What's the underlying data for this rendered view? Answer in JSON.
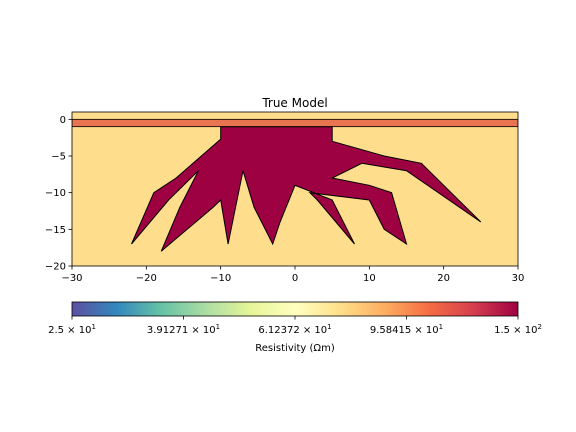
{
  "chart_data": {
    "type": "heatmap",
    "title": "True Model",
    "xlim": [
      -30,
      30
    ],
    "ylim": [
      -20,
      1
    ],
    "x_ticks": [
      -30,
      -20,
      -10,
      0,
      10,
      20,
      30
    ],
    "x_tick_labels": [
      "−30",
      "−20",
      "−10",
      "0",
      "10",
      "20",
      "30"
    ],
    "y_ticks": [
      0,
      -5,
      -10,
      -15,
      -20
    ],
    "y_tick_labels": [
      "0",
      "−5",
      "−10",
      "−15",
      "−20"
    ],
    "regions": [
      {
        "name": "background",
        "resistivity": 62,
        "color": "#fedd8d"
      },
      {
        "name": "surface layer",
        "y_top": 0,
        "y_bottom": -1,
        "resistivity": 100,
        "color": "#e8754f"
      },
      {
        "name": "root body",
        "resistivity": 150,
        "color": "#9e0142",
        "outline": [
          [
            -10,
            -1
          ],
          [
            -10,
            -2.7
          ],
          [
            -16,
            -8
          ],
          [
            -19,
            -10
          ],
          [
            -22,
            -17
          ],
          [
            -17,
            -11
          ],
          [
            -13,
            -7
          ],
          [
            -15.5,
            -12
          ],
          [
            -18,
            -18
          ],
          [
            -14.5,
            -15
          ],
          [
            -11,
            -12
          ],
          [
            -10,
            -11
          ],
          [
            -9,
            -17
          ],
          [
            -7,
            -7
          ],
          [
            -5.5,
            -12
          ],
          [
            -3,
            -17
          ],
          [
            -2,
            -14
          ],
          [
            0,
            -9
          ],
          [
            5,
            -11
          ],
          [
            8,
            -17
          ],
          [
            3,
            -11
          ],
          [
            2,
            -10
          ],
          [
            10,
            -11
          ],
          [
            12,
            -15
          ],
          [
            15,
            -17
          ],
          [
            13,
            -10
          ],
          [
            10,
            -9
          ],
          [
            5,
            -8
          ],
          [
            9,
            -6
          ],
          [
            15,
            -7
          ],
          [
            25,
            -14
          ],
          [
            17,
            -6
          ],
          [
            12,
            -5
          ],
          [
            5,
            -3
          ],
          [
            5,
            -1
          ]
        ]
      }
    ],
    "colorbar": {
      "label": "Resistivity (Ωm)",
      "scale": "log",
      "range": [
        25,
        150
      ],
      "colormap": "Spectral_r",
      "ticks": [
        25,
        39.1271,
        61.2372,
        95.8415,
        150
      ],
      "tick_labels": [
        {
          "mant": "2.5",
          "exp": "1"
        },
        {
          "mant": "3.91271",
          "exp": "1"
        },
        {
          "mant": "6.12372",
          "exp": "1"
        },
        {
          "mant": "9.58415",
          "exp": "1"
        },
        {
          "mant": "1.5",
          "exp": "2"
        }
      ]
    }
  }
}
